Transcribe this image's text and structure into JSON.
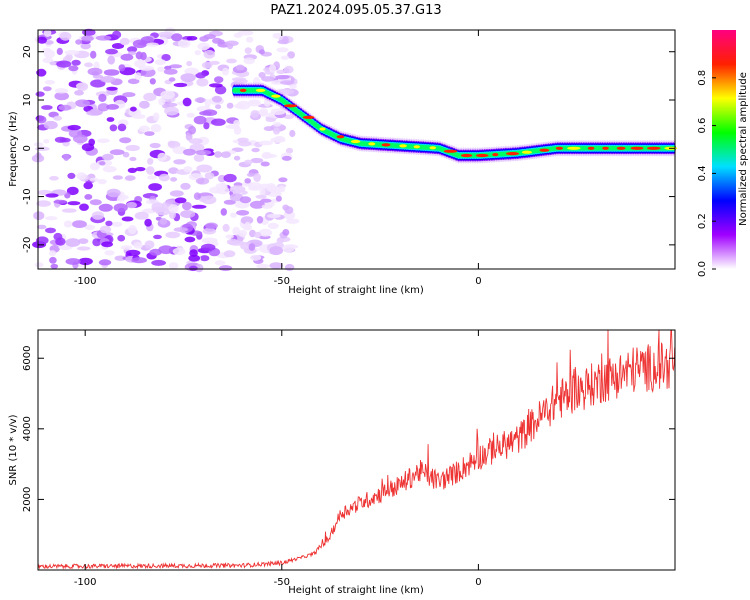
{
  "title": "PAZ1.2024.095.05.37.G13",
  "chart_data": [
    {
      "type": "heatmap",
      "xlabel": "Height of straight line (km)",
      "ylabel": "Frequency (Hz)",
      "xlim": [
        -112,
        50
      ],
      "ylim": [
        -25,
        24.5
      ],
      "xticks": [
        -100,
        -50,
        0
      ],
      "xtick_labels": [
        "-100",
        "-50",
        "0"
      ],
      "yticks": [
        20,
        10,
        0,
        -10,
        -20
      ],
      "ytick_labels": [
        "20",
        "10",
        "0",
        "-10",
        "-20"
      ],
      "colorbar": {
        "label": "Normalized spectral amplitude",
        "range": [
          0,
          1
        ],
        "ticks": [
          0.0,
          0.2,
          0.4,
          0.6,
          0.8
        ],
        "tick_labels": [
          "0.0",
          "0.2",
          "0.4",
          "0.6",
          "0.8"
        ],
        "colormap": [
          "#ffffff",
          "#a000ff",
          "#0000ff",
          "#00e0ff",
          "#00ff00",
          "#ffff00",
          "#ff2000",
          "#ff0080"
        ]
      },
      "ridge": {
        "x": [
          -60,
          -55,
          -50,
          -45,
          -40,
          -35,
          -30,
          -20,
          -10,
          -5,
          0,
          10,
          20,
          30,
          40,
          50
        ],
        "y": [
          12,
          12,
          10,
          7,
          4,
          2,
          1,
          0.5,
          0,
          -1.5,
          -1.5,
          -1,
          0,
          0,
          0,
          0
        ]
      }
    },
    {
      "type": "line",
      "xlabel": "Height of straight line (km)",
      "ylabel": "SNR (10 * v/v)",
      "xlim": [
        -112,
        50
      ],
      "ylim": [
        0,
        6800
      ],
      "xticks": [
        -100,
        -50,
        0
      ],
      "xtick_labels": [
        "-100",
        "-50",
        "0"
      ],
      "yticks": [
        6000,
        4000,
        2000
      ],
      "ytick_labels": [
        "6000",
        "4000",
        "2000"
      ],
      "color": "#ee3333",
      "trend": {
        "x": [
          -112,
          -60,
          -50,
          -42,
          -38,
          -35,
          -30,
          -20,
          -15,
          -10,
          -5,
          0,
          10,
          20,
          30,
          40,
          50
        ],
        "y": [
          100,
          130,
          200,
          450,
          900,
          1600,
          1900,
          2400,
          2800,
          2500,
          2800,
          3200,
          3700,
          4800,
          5300,
          5700,
          5800
        ]
      }
    }
  ]
}
